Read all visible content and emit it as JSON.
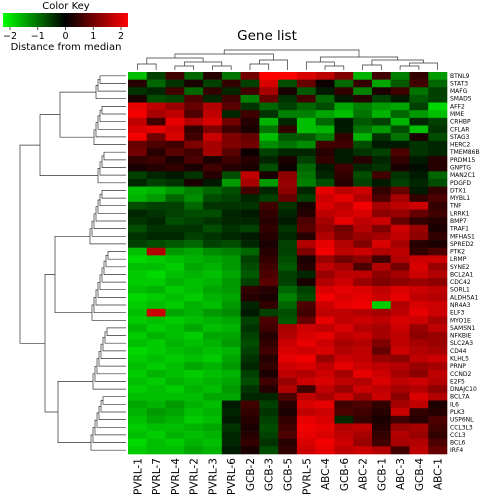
{
  "chart_data": {
    "type": "heatmap",
    "title": "Gene list",
    "color_key": {
      "title": "Color Key",
      "label": "Distance from median",
      "ticks": [
        "−2",
        "−1",
        "0",
        "1",
        "2"
      ],
      "range": [
        -2,
        2
      ],
      "low_color": "#00ff00",
      "mid_color": "#000000",
      "high_color": "#ff0000"
    },
    "columns": [
      "PVRL-1",
      "PVRL-7",
      "PVRL-4",
      "PVRL-2",
      "PVRL-3",
      "PVRL-6",
      "GCB-2",
      "GCB-3",
      "GCB-5",
      "PVRL-5",
      "ABC-4",
      "GCB-6",
      "ABC-2",
      "GCB-1",
      "ABC-3",
      "GCB-4",
      "ABC-1"
    ],
    "rows": [
      "BTNL9",
      "STAT3",
      "MAFG",
      "SMAD5",
      "AFF2",
      "MME",
      "CRHBP",
      "CFLAR",
      "STAG3",
      "HERC2",
      "TMEM86B",
      "PRDM15",
      "GNPTG",
      "MAN2C1",
      "PDGFD",
      "DTX1",
      "MYBL1",
      "TNF",
      "LRRK1",
      "BMP7",
      "TRAF1",
      "MFHAS1",
      "SPRED2",
      "PTK2",
      "LRMP",
      "SYNE2",
      "BCL2A1",
      "CDC42",
      "SORL1",
      "ALDH5A1",
      "NR4A3",
      "ELF3",
      "MYO1E",
      "SAMSN1",
      "NFKBIE",
      "SLC2A3",
      "CD44",
      "KLHL5",
      "PRNP",
      "CCND2",
      "E2F5",
      "DNAJC10",
      "BCL7A",
      "IL6",
      "PLK3",
      "USP6NL",
      "CCL3L3",
      "CCL3",
      "BCL6",
      "IRF4"
    ],
    "values": [
      [
        -1.5,
        -0.5,
        0.5,
        -0.8,
        0.3,
        -0.9,
        0.9,
        2,
        2,
        1.7,
        1.5,
        1,
        -1.4,
        0.5,
        -1,
        0.4,
        -1.2
      ],
      [
        0.3,
        -0.8,
        -0.4,
        0.2,
        -0.5,
        0.4,
        -0.5,
        1.7,
        -0.6,
        0.8,
        0.1,
        -0.8,
        0.4,
        -1.3,
        -0.7,
        0.5,
        -0.8
      ],
      [
        -0.4,
        -0.3,
        0.5,
        -0.8,
        0.4,
        -0.3,
        0.5,
        1.3,
        0.2,
        -0.7,
        -0.2,
        0.4,
        -1,
        0.2,
        0.5,
        -0.9,
        -0.5
      ],
      [
        0.2,
        -0.6,
        -0.5,
        0.6,
        -0.3,
        0.5,
        -1,
        0.8,
        -0.4,
        0.5,
        -0.8,
        -0.2,
        0.3,
        -0.5,
        -0.2,
        -0.7,
        -0.5
      ],
      [
        1.8,
        1.5,
        1.2,
        0.8,
        1.4,
        0.7,
        -0.4,
        -0.8,
        -0.5,
        -0.8,
        -0.6,
        -1.3,
        -1,
        -1.2,
        -1.3,
        -0.5,
        -1.7
      ],
      [
        1.9,
        1.3,
        1.5,
        0.6,
        1.5,
        -0.3,
        0.5,
        -0.4,
        -1,
        -1,
        -1.3,
        -1.5,
        -0.9,
        -1.4,
        -0.8,
        -1.2,
        -1.5
      ],
      [
        1.5,
        0.5,
        1.8,
        1.4,
        1.7,
        0.9,
        0.3,
        -1.4,
        -0.3,
        -1.5,
        -0.8,
        -0.2,
        -0.7,
        -0.5,
        -1.4,
        -0.3,
        -0.5
      ],
      [
        1.7,
        1.8,
        1.6,
        0.4,
        1,
        0.5,
        0.2,
        -0.9,
        0.4,
        -1.5,
        -1.4,
        -0.2,
        -0.9,
        -1.2,
        -0.6,
        -1.5,
        -0.4
      ],
      [
        1.9,
        0.9,
        1.7,
        0.5,
        1.6,
        1,
        0.8,
        -1.5,
        -0.7,
        -0.7,
        -1,
        0.4,
        -1.4,
        -0.4,
        -0.9,
        0.2,
        -0.6
      ],
      [
        0.8,
        0.6,
        0.5,
        1,
        1.3,
        1,
        0.9,
        -1.1,
        -0.9,
        -1.1,
        0.5,
        0.5,
        -0.6,
        -0.2,
        -0.2,
        -0.4,
        -0.3
      ],
      [
        0.9,
        0.3,
        0.7,
        0.5,
        1.3,
        0.7,
        0.1,
        -0.5,
        -0.3,
        -0.3,
        0.3,
        -0.2,
        -0.4,
        -0.5,
        0.6,
        -0.4,
        -0.3
      ],
      [
        0.4,
        0.5,
        0.2,
        0.6,
        0.2,
        0.5,
        0.3,
        -0.3,
        0.2,
        -0.5,
        0.4,
        -0.2,
        0.3,
        -0.3,
        0.4,
        -0.2,
        0.3
      ],
      [
        0.2,
        0.3,
        0.4,
        0.2,
        0.5,
        0.3,
        0.2,
        -0.6,
        0.1,
        -0.8,
        -0.2,
        0.5,
        -0.3,
        -0.4,
        0.2,
        -0.1,
        0.3
      ],
      [
        -0.5,
        -0.3,
        -0.2,
        -0.4,
        0.3,
        -0.6,
        1.5,
        0.2,
        1.1,
        -0.9,
        -0.3,
        0.4,
        -0.6,
        0.5,
        -0.4,
        -0.2,
        -0.8
      ],
      [
        -0.3,
        -0.5,
        -0.4,
        0.2,
        -0.2,
        -1.2,
        1.3,
        -1.2,
        1.2,
        -1,
        -0.6,
        0.3,
        -0.5,
        -0.2,
        -0.5,
        -0.3,
        -0.6
      ],
      [
        -1.5,
        -1.4,
        -1.2,
        -1,
        -0.8,
        -0.6,
        0.5,
        -0.3,
        1.1,
        -0.3,
        1.8,
        1.5,
        1.6,
        0.4,
        0.8,
        -0.2,
        0.4
      ],
      [
        -1.4,
        -1.2,
        -0.8,
        -1.1,
        -0.6,
        -0.5,
        -0.3,
        -0.5,
        0.8,
        -0.5,
        1.6,
        1.8,
        1.4,
        0.6,
        1.3,
        0.4,
        0.6
      ],
      [
        -0.6,
        -0.5,
        -0.5,
        -0.8,
        -0.4,
        -0.4,
        -0.4,
        0.5,
        -0.4,
        0.2,
        1.7,
        1.5,
        1.9,
        1.3,
        1.5,
        1.6,
        0.4
      ],
      [
        -0.3,
        -0.4,
        -0.5,
        -0.6,
        -0.6,
        -0.3,
        -0.2,
        0.4,
        -0.3,
        0.3,
        1.5,
        1.6,
        1.7,
        1.1,
        1.2,
        0.8,
        0.5
      ],
      [
        -0.4,
        -0.3,
        -0.6,
        -0.5,
        -0.4,
        -0.3,
        -0.3,
        0.3,
        -0.2,
        0.6,
        1.3,
        1.8,
        1.5,
        1.6,
        0.8,
        0.4,
        0.3
      ],
      [
        -0.6,
        -0.4,
        -0.4,
        -0.4,
        -0.6,
        -0.4,
        -0.5,
        0.4,
        -0.4,
        0.7,
        1.2,
        0.9,
        1.4,
        1,
        1.6,
        1.2,
        0.2
      ],
      [
        -0.4,
        -0.3,
        -0.3,
        -0.5,
        -0.4,
        -0.3,
        -0.2,
        0.3,
        -0.3,
        0.3,
        1.4,
        1,
        1.2,
        1.3,
        1.5,
        1.1,
        0.4
      ],
      [
        -0.5,
        -0.6,
        -0.7,
        -0.8,
        -0.5,
        -0.6,
        -0.3,
        0.2,
        -0.5,
        1.4,
        1.8,
        1.4,
        1,
        1.7,
        1.3,
        0.3,
        0.2
      ],
      [
        -1.5,
        1.4,
        -1.2,
        -1.3,
        -1.1,
        -1,
        -0.8,
        0.3,
        -0.5,
        1,
        1.9,
        1.5,
        1.6,
        1.4,
        1.5,
        0.4,
        0.6
      ],
      [
        -1.7,
        -1.6,
        -1.5,
        -1.4,
        -1.3,
        -1.2,
        -0.5,
        0.4,
        -0.6,
        0.2,
        1.2,
        0.9,
        1.1,
        0.5,
        1.4,
        1.6,
        1.6
      ],
      [
        -1.5,
        -1.5,
        -1.6,
        -1.3,
        -1.4,
        -1.2,
        -0.6,
        0.5,
        -0.7,
        0.3,
        1.5,
        1.3,
        0.6,
        1.4,
        0.9,
        1.7,
        1.2
      ],
      [
        -1.6,
        -1.7,
        -1.5,
        -1.4,
        -1.5,
        -1.3,
        -0.7,
        0.6,
        -0.5,
        -0.3,
        1.2,
        1.5,
        1.5,
        1.1,
        1.3,
        1.6,
        1.4
      ],
      [
        -1.6,
        -1.6,
        -1.4,
        -1.5,
        -1.4,
        -1.2,
        -0.5,
        0.7,
        -0.5,
        0.2,
        1.4,
        1.6,
        1.2,
        1,
        1.1,
        1.2,
        1.1
      ],
      [
        -1.5,
        -1.4,
        -1.6,
        -1.5,
        -1.3,
        -1.2,
        0.4,
        0.3,
        -0.8,
        -0.5,
        1.7,
        1.8,
        1.7,
        1.5,
        1.7,
        1.6,
        1.5
      ],
      [
        -1.7,
        -1.6,
        -1.5,
        -1.6,
        -1.4,
        -1.3,
        0.3,
        0.2,
        -1,
        -0.6,
        1.9,
        1.7,
        1.8,
        1.6,
        1.8,
        1.5,
        1.4
      ],
      [
        -1.6,
        -1.5,
        -1.6,
        -1.4,
        -1.5,
        -1.2,
        -0.3,
        0.4,
        -0.8,
        0.6,
        1.6,
        1.8,
        1.9,
        -1.6,
        1.4,
        1.7,
        1.6
      ],
      [
        -1.5,
        1.6,
        -1.3,
        -1.4,
        -1.2,
        -1.1,
        -0.2,
        -0.5,
        -0.6,
        0.5,
        1.5,
        1.5,
        1.4,
        1.3,
        1.5,
        1.8,
        1.6
      ],
      [
        -1.6,
        -1.5,
        -1.6,
        -1.5,
        -1.4,
        -1.3,
        -0.5,
        0.6,
        -0.7,
        0.8,
        1.8,
        1.5,
        1.6,
        1.5,
        1.7,
        1.6,
        1.3
      ],
      [
        -1.4,
        -1.6,
        -1.5,
        -1.3,
        -1.5,
        -1.4,
        -0.4,
        0.5,
        1.3,
        1.6,
        1.5,
        1.7,
        1.4,
        1.3,
        1.6,
        1.2,
        1.5
      ],
      [
        -1.6,
        -1.4,
        -1.5,
        -1.6,
        -1.3,
        -1.3,
        -0.5,
        0.3,
        1.4,
        1.7,
        1.8,
        1.5,
        1.6,
        1.3,
        1.5,
        1.1,
        1.2
      ],
      [
        -1.5,
        -1.6,
        -1.4,
        -1.5,
        -1.4,
        -1.2,
        -0.6,
        0.4,
        1.6,
        1.8,
        1.6,
        1.3,
        1.4,
        1,
        1.5,
        1.3,
        1.2
      ],
      [
        -1.7,
        -1.6,
        -1.5,
        -1.4,
        -1.5,
        -1.4,
        -0.5,
        0.5,
        1.7,
        1.6,
        1.7,
        1.4,
        1.5,
        0.8,
        1.6,
        1.4,
        1.3
      ],
      [
        -1.6,
        -1.5,
        -1.6,
        -1.5,
        -1.6,
        -1.3,
        -0.4,
        0.3,
        1.8,
        1.9,
        1.2,
        1.6,
        1.5,
        1.2,
        1.1,
        1.5,
        1.6
      ],
      [
        -1.5,
        -1.6,
        -1.5,
        -1.3,
        -1.4,
        -1.2,
        -0.3,
        0.4,
        1.6,
        1.7,
        1.5,
        1.8,
        1.6,
        1.5,
        1.4,
        1.2,
        1.3
      ],
      [
        -1.6,
        -1.4,
        -1.5,
        -1.6,
        -1.5,
        -1.4,
        -0.5,
        0.2,
        1.5,
        1.4,
        1.6,
        1.3,
        1.8,
        1.6,
        1.3,
        1.1,
        1.5
      ],
      [
        -1.5,
        -1.6,
        -1.4,
        -1.5,
        -1.4,
        -1.3,
        -0.6,
        0.5,
        1.2,
        1.6,
        1.7,
        1.5,
        1.4,
        1.7,
        1.5,
        1.6,
        1.4
      ],
      [
        -1.6,
        -1.5,
        -1.6,
        -1.4,
        -1.5,
        -1.2,
        -0.4,
        0.3,
        1.4,
        0.5,
        1.5,
        1.2,
        1.6,
        1.5,
        1.3,
        1.4,
        1.1
      ],
      [
        -1.5,
        -1.5,
        -1.5,
        -1.5,
        -1.3,
        -1.3,
        -0.3,
        -0.3,
        0.6,
        1.5,
        1.3,
        1.6,
        1.2,
        1.6,
        1.1,
        1.7,
        1.4
      ],
      [
        -1.3,
        -1.4,
        -1.2,
        -1.4,
        -1.5,
        -0.2,
        0.5,
        -0.5,
        0.3,
        1.7,
        1.8,
        0.5,
        0.6,
        0.4,
        1.3,
        1.5,
        0.2
      ],
      [
        -1.4,
        -1.2,
        -1.3,
        -1.5,
        -1.4,
        -0.3,
        0.4,
        -0.4,
        0.2,
        1.5,
        1.6,
        0.6,
        0.5,
        0.3,
        1.6,
        0.4,
        0.3
      ],
      [
        -1.5,
        -1.3,
        -1.4,
        -1.6,
        -1.5,
        -0.2,
        0.3,
        -0.5,
        0.4,
        1.8,
        1.7,
        -0.3,
        0.4,
        0.2,
        0.5,
        0.3,
        0.6
      ],
      [
        -1.6,
        -1.5,
        -1.5,
        -1.4,
        -1.3,
        -0.4,
        0.2,
        -0.6,
        0.5,
        1.9,
        1.8,
        1.4,
        1.5,
        0.3,
        1.2,
        1.3,
        0.5
      ],
      [
        -1.5,
        -1.6,
        -1.4,
        -1.5,
        -1.4,
        -0.3,
        0.3,
        -0.5,
        0.6,
        1.8,
        1.7,
        1.5,
        1.3,
        0.4,
        1.4,
        1.2,
        0.4
      ],
      [
        -1.7,
        -1.5,
        -1.6,
        -1.4,
        -1.5,
        -0.3,
        0.4,
        -0.4,
        0.3,
        1.7,
        1.9,
        1.6,
        1.2,
        0.5,
        1.3,
        1.4,
        0.6
      ],
      [
        -1.6,
        -1.5,
        -1.5,
        -1.3,
        -1.4,
        -0.2,
        0.2,
        -0.6,
        0.4,
        1.6,
        1.8,
        1.5,
        1.6,
        1.4,
        0.5,
        1.5,
        0.8
      ]
    ]
  }
}
